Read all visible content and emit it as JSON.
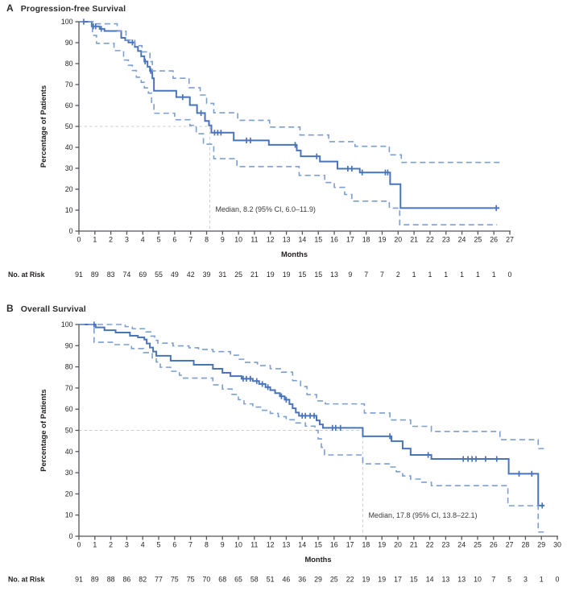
{
  "figure_name": "Kaplan-Meier survival figure",
  "colors": {
    "survival_line": "#4a74ba",
    "ci_line": "#7b9ed3",
    "median_guide": "#cccccc",
    "axis": "#55565a",
    "text": "#231f20",
    "title_text": "#2b2b2d"
  },
  "chart_data": [
    {
      "type": "line",
      "panel_letter": "A",
      "title": "Progression-free Survival",
      "xlabel": "Months",
      "ylabel": "Percentage of Patients",
      "xlim": [
        0,
        27
      ],
      "ylim": [
        0,
        100
      ],
      "xtick_step": 1,
      "ytick_step": 10,
      "grid": false,
      "median": {
        "label": "Median, 8.2 (95% CI, 6.0–11.9)",
        "month": 8.2,
        "at_percent": 50
      },
      "at_risk_label": "No. at Risk",
      "at_risk": [
        91,
        89,
        83,
        74,
        69,
        55,
        49,
        42,
        39,
        31,
        25,
        21,
        19,
        19,
        15,
        15,
        13,
        9,
        7,
        7,
        2,
        1,
        1,
        1,
        1,
        1,
        1,
        0
      ],
      "series": [
        {
          "name": "survival",
          "style": "solid",
          "end_month": 26.35,
          "points": [
            [
              0,
              100
            ],
            [
              0.8,
              97.8
            ],
            [
              1.3,
              96.6
            ],
            [
              1.6,
              95.6
            ],
            [
              2.65,
              92.3
            ],
            [
              2.9,
              91.2
            ],
            [
              3.1,
              90.1
            ],
            [
              3.5,
              88.0
            ],
            [
              3.7,
              86.0
            ],
            [
              3.9,
              83.5
            ],
            [
              4.1,
              81.0
            ],
            [
              4.3,
              78.5
            ],
            [
              4.45,
              76.5
            ],
            [
              4.6,
              73.0
            ],
            [
              4.7,
              67.0
            ],
            [
              6.1,
              64.0
            ],
            [
              6.95,
              60.2
            ],
            [
              7.4,
              56.4
            ],
            [
              7.9,
              52.6
            ],
            [
              8.15,
              50.5
            ],
            [
              8.3,
              47.0
            ],
            [
              9.7,
              43.3
            ],
            [
              11.9,
              41.2
            ],
            [
              13.65,
              38.5
            ],
            [
              13.9,
              35.7
            ],
            [
              15.1,
              33.2
            ],
            [
              16.2,
              29.8
            ],
            [
              17.6,
              28.0
            ],
            [
              19.5,
              22.4
            ],
            [
              20.15,
              11.0
            ]
          ]
        },
        {
          "name": "upper_95ci",
          "style": "dashed",
          "end_month": 26.5,
          "points": [
            [
              0,
              100
            ],
            [
              1.05,
              99.0
            ],
            [
              2.4,
              95.5
            ],
            [
              2.95,
              91.2
            ],
            [
              3.5,
              88.6
            ],
            [
              3.95,
              85.6
            ],
            [
              4.45,
              81.0
            ],
            [
              4.6,
              76.5
            ],
            [
              5.9,
              73.0
            ],
            [
              6.9,
              68.5
            ],
            [
              7.6,
              65.0
            ],
            [
              8.0,
              61.0
            ],
            [
              8.45,
              56.5
            ],
            [
              9.95,
              52.9
            ],
            [
              11.95,
              49.7
            ],
            [
              13.85,
              45.9
            ],
            [
              15.65,
              42.7
            ],
            [
              17.3,
              40.5
            ],
            [
              19.45,
              36.4
            ],
            [
              20.2,
              32.8
            ]
          ]
        },
        {
          "name": "lower_95ci",
          "style": "dashed",
          "end_month": 26.2,
          "points": [
            [
              0,
              100
            ],
            [
              0.85,
              93.5
            ],
            [
              1.1,
              89.7
            ],
            [
              2.2,
              86.2
            ],
            [
              2.8,
              81.7
            ],
            [
              3.1,
              79.2
            ],
            [
              3.35,
              76.7
            ],
            [
              3.6,
              73.5
            ],
            [
              3.9,
              71.1
            ],
            [
              4.1,
              68.4
            ],
            [
              4.35,
              65.9
            ],
            [
              4.55,
              60.5
            ],
            [
              4.7,
              56.3
            ],
            [
              6.0,
              53.2
            ],
            [
              6.95,
              50.5
            ],
            [
              7.35,
              46.5
            ],
            [
              7.8,
              41.5
            ],
            [
              8.45,
              34.6
            ],
            [
              9.9,
              30.8
            ],
            [
              13.8,
              26.6
            ],
            [
              15.4,
              23.2
            ],
            [
              16.0,
              20.9
            ],
            [
              16.65,
              17.5
            ],
            [
              17.1,
              14.3
            ],
            [
              19.45,
              11.0
            ],
            [
              20.1,
              3.0
            ]
          ]
        }
      ],
      "censor_marks": [
        [
          0.3,
          100
        ],
        [
          0.9,
          97.8
        ],
        [
          1.05,
          97.8
        ],
        [
          1.4,
          96.6
        ],
        [
          3.35,
          90.1
        ],
        [
          4.15,
          81.0
        ],
        [
          4.5,
          76.5
        ],
        [
          6.5,
          64.0
        ],
        [
          7.65,
          56.4
        ],
        [
          8.5,
          47.0
        ],
        [
          8.7,
          47.0
        ],
        [
          8.9,
          47.0
        ],
        [
          10.5,
          43.3
        ],
        [
          10.75,
          43.3
        ],
        [
          13.55,
          41.2
        ],
        [
          14.9,
          35.7
        ],
        [
          16.85,
          29.8
        ],
        [
          17.1,
          29.8
        ],
        [
          17.75,
          28.0
        ],
        [
          19.2,
          28.0
        ],
        [
          19.35,
          28.0
        ],
        [
          26.15,
          11.0
        ]
      ]
    },
    {
      "type": "line",
      "panel_letter": "B",
      "title": "Overall Survival",
      "xlabel": "Months",
      "ylabel": "Percentage of Patients",
      "xlim": [
        0,
        30
      ],
      "ylim": [
        0,
        100
      ],
      "xtick_step": 1,
      "ytick_step": 10,
      "grid": false,
      "median": {
        "label": "Median, 17.8 (95% CI, 13.8–22.1)",
        "month": 17.8,
        "at_percent": 50
      },
      "at_risk_label": "No. at Risk",
      "at_risk": [
        91,
        89,
        88,
        86,
        82,
        77,
        75,
        75,
        70,
        68,
        65,
        58,
        51,
        46,
        36,
        29,
        25,
        22,
        19,
        19,
        17,
        15,
        14,
        13,
        13,
        10,
        7,
        5,
        3,
        1,
        0
      ],
      "series": [
        {
          "name": "survival",
          "style": "solid",
          "end_month": 29.2,
          "points": [
            [
              0,
              100
            ],
            [
              1.05,
              98.6
            ],
            [
              1.6,
              97.3
            ],
            [
              2.3,
              96.2
            ],
            [
              3.2,
              94.7
            ],
            [
              3.7,
              93.9
            ],
            [
              4.1,
              92.9
            ],
            [
              4.25,
              91.0
            ],
            [
              4.45,
              89.1
            ],
            [
              4.65,
              87.2
            ],
            [
              4.85,
              85.2
            ],
            [
              5.75,
              82.9
            ],
            [
              7.2,
              81.0
            ],
            [
              8.4,
              79.1
            ],
            [
              9.0,
              77.2
            ],
            [
              9.5,
              75.6
            ],
            [
              10.2,
              74.4
            ],
            [
              10.9,
              73.3
            ],
            [
              11.3,
              71.9
            ],
            [
              11.7,
              70.4
            ],
            [
              12.0,
              69.0
            ],
            [
              12.3,
              67.6
            ],
            [
              12.6,
              66.1
            ],
            [
              12.9,
              64.5
            ],
            [
              13.2,
              62.4
            ],
            [
              13.4,
              60.4
            ],
            [
              13.6,
              58.4
            ],
            [
              13.8,
              56.9
            ],
            [
              14.9,
              54.7
            ],
            [
              15.1,
              52.8
            ],
            [
              15.3,
              51.2
            ],
            [
              17.8,
              47.2
            ],
            [
              19.6,
              44.9
            ],
            [
              20.3,
              41.4
            ],
            [
              20.8,
              38.4
            ],
            [
              22.1,
              36.5
            ],
            [
              26.95,
              29.5
            ],
            [
              28.8,
              14.5
            ]
          ]
        },
        {
          "name": "upper_95ci",
          "style": "dashed",
          "end_month": 29.35,
          "points": [
            [
              0,
              100
            ],
            [
              2.9,
              99.0
            ],
            [
              3.35,
              98.0
            ],
            [
              4.2,
              96.5
            ],
            [
              4.5,
              94.5
            ],
            [
              4.75,
              92.5
            ],
            [
              4.95,
              91.2
            ],
            [
              5.9,
              89.9
            ],
            [
              6.9,
              89.0
            ],
            [
              7.5,
              88.2
            ],
            [
              8.4,
              87.2
            ],
            [
              9.5,
              85.5
            ],
            [
              10.0,
              83.6
            ],
            [
              10.4,
              82.1
            ],
            [
              11.2,
              80.6
            ],
            [
              12.0,
              79.1
            ],
            [
              12.7,
              77.5
            ],
            [
              13.4,
              73.5
            ],
            [
              13.9,
              70.7
            ],
            [
              14.3,
              66.9
            ],
            [
              14.9,
              63.9
            ],
            [
              15.45,
              62.5
            ],
            [
              17.9,
              58.2
            ],
            [
              19.5,
              54.9
            ],
            [
              20.8,
              51.9
            ],
            [
              22.1,
              49.5
            ],
            [
              26.4,
              45.6
            ],
            [
              28.8,
              41.4
            ]
          ]
        },
        {
          "name": "lower_95ci",
          "style": "dashed",
          "end_month": 29.3,
          "points": [
            [
              0,
              100
            ],
            [
              0.95,
              91.6
            ],
            [
              2.2,
              90.5
            ],
            [
              3.3,
              88.6
            ],
            [
              4.05,
              86.7
            ],
            [
              4.6,
              84.2
            ],
            [
              4.85,
              82.3
            ],
            [
              5.1,
              79.8
            ],
            [
              5.75,
              77.9
            ],
            [
              6.3,
              76.0
            ],
            [
              6.5,
              74.7
            ],
            [
              8.4,
              71.5
            ],
            [
              9.0,
              69.5
            ],
            [
              9.6,
              67.0
            ],
            [
              10.0,
              64.5
            ],
            [
              10.35,
              62.5
            ],
            [
              10.9,
              61.0
            ],
            [
              11.5,
              59.5
            ],
            [
              12.0,
              58.0
            ],
            [
              12.5,
              56.5
            ],
            [
              13.0,
              55.0
            ],
            [
              13.5,
              53.5
            ],
            [
              14.2,
              52.0
            ],
            [
              14.8,
              50.0
            ],
            [
              15.0,
              46.0
            ],
            [
              15.2,
              42.0
            ],
            [
              15.4,
              38.4
            ],
            [
              17.8,
              34.2
            ],
            [
              19.5,
              32.7
            ],
            [
              19.9,
              30.5
            ],
            [
              20.3,
              28.5
            ],
            [
              20.8,
              27.0
            ],
            [
              21.5,
              25.5
            ],
            [
              22.1,
              23.9
            ],
            [
              26.9,
              14.4
            ],
            [
              28.8,
              2.0
            ]
          ]
        }
      ],
      "censor_marks": [
        [
          0.95,
          100
        ],
        [
          10.3,
          74.4
        ],
        [
          10.5,
          74.4
        ],
        [
          10.75,
          74.4
        ],
        [
          11.15,
          73.3
        ],
        [
          11.5,
          71.9
        ],
        [
          11.85,
          70.4
        ],
        [
          12.7,
          66.1
        ],
        [
          13.0,
          64.5
        ],
        [
          14.0,
          56.9
        ],
        [
          14.2,
          56.9
        ],
        [
          14.5,
          56.9
        ],
        [
          14.75,
          56.9
        ],
        [
          15.9,
          51.2
        ],
        [
          16.1,
          51.2
        ],
        [
          16.4,
          51.2
        ],
        [
          19.5,
          47.2
        ],
        [
          21.9,
          38.4
        ],
        [
          24.1,
          36.5
        ],
        [
          24.4,
          36.5
        ],
        [
          24.65,
          36.5
        ],
        [
          24.9,
          36.5
        ],
        [
          25.5,
          36.5
        ],
        [
          26.2,
          36.5
        ],
        [
          27.6,
          29.5
        ],
        [
          28.4,
          29.5
        ],
        [
          29.05,
          14.5
        ]
      ]
    }
  ]
}
